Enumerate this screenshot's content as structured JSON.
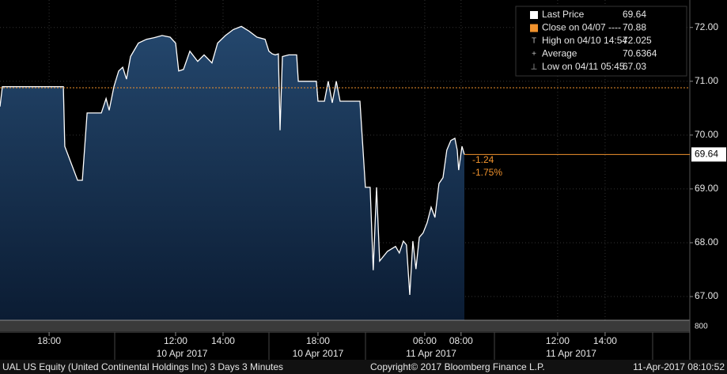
{
  "chart_data": {
    "type": "area",
    "x": [
      0,
      0.1,
      2.67,
      2.73,
      3.27,
      3.47,
      3.67,
      4.27,
      4.47,
      4.6,
      4.8,
      5,
      5.17,
      5.33,
      5.5,
      5.83,
      6.17,
      6.5,
      6.83,
      7.17,
      7.4,
      7.53,
      7.73,
      8,
      8.33,
      8.6,
      8.93,
      9.17,
      9.5,
      9.83,
      10.17,
      10.5,
      10.83,
      11.17,
      11.33,
      11.47,
      11.6,
      11.73,
      11.8,
      11.9,
      12.17,
      12.5,
      12.57,
      13,
      13.33,
      13.4,
      13.67,
      13.83,
      14,
      14.17,
      14.33,
      15.17,
      15.4,
      15.6,
      15.73,
      15.87,
      16,
      16.33,
      16.67,
      16.83,
      17,
      17.13,
      17.27,
      17.4,
      17.53,
      17.67,
      17.83,
      18,
      18.17,
      18.33,
      18.5,
      18.67,
      18.83,
      19,
      19.17,
      19.27,
      19.33,
      19.47,
      19.57
    ],
    "series": [
      {
        "name": "Last Price",
        "color": "#ffffff",
        "values": [
          70.53,
          70.9,
          70.9,
          69.79,
          69.16,
          69.16,
          70.41,
          70.41,
          70.68,
          70.46,
          70.9,
          71.19,
          71.26,
          71.04,
          71.46,
          71.71,
          71.78,
          71.81,
          71.85,
          71.82,
          71.71,
          71.19,
          71.22,
          71.56,
          71.37,
          71.49,
          71.34,
          71.71,
          71.85,
          71.96,
          72.02,
          71.93,
          71.82,
          71.78,
          71.56,
          71.51,
          71.49,
          71.51,
          70.09,
          71.46,
          71.49,
          71.49,
          71,
          71,
          71,
          70.63,
          70.63,
          71,
          70.6,
          71,
          70.63,
          70.63,
          69.03,
          69.03,
          67.49,
          69.03,
          67.66,
          67.84,
          67.93,
          67.81,
          68.03,
          67.96,
          67.03,
          68.03,
          67.51,
          68.1,
          68.18,
          68.37,
          68.66,
          68.47,
          69.1,
          69.21,
          69.72,
          69.9,
          69.94,
          69.72,
          69.35,
          69.79,
          69.64
        ]
      }
    ],
    "xlim": [
      0,
      29.07
    ],
    "xticks": [
      {
        "value": 2.07,
        "label": "18:00"
      },
      {
        "value": 7.4,
        "label": "12:00"
      },
      {
        "value": 9.4,
        "label": "14:00"
      },
      {
        "value": 13.4,
        "label": "18:00"
      },
      {
        "value": 17.9,
        "label": "06:00"
      },
      {
        "value": 19.43,
        "label": "08:00"
      },
      {
        "value": 23.5,
        "label": "12:00"
      },
      {
        "value": 25.5,
        "label": "14:00"
      }
    ],
    "date_labels": [
      {
        "value": 7.67,
        "label": "10 Apr 2017"
      },
      {
        "value": 13.4,
        "label": "10 Apr 2017"
      },
      {
        "value": 18.17,
        "label": "11 Apr 2017"
      },
      {
        "value": 24.07,
        "label": "11 Apr 2017"
      }
    ],
    "ylim": [
      66.56,
      72.51
    ],
    "yticks": [
      {
        "value": 67,
        "label": "67.00"
      },
      {
        "value": 68,
        "label": "68.00"
      },
      {
        "value": 69,
        "label": "69.00"
      },
      {
        "value": 70,
        "label": "70.00"
      },
      {
        "value": 71,
        "label": "71.00"
      },
      {
        "value": 72,
        "label": "72.00"
      }
    ],
    "grid": true,
    "legend": [
      {
        "label": "Last Price",
        "value": 69.64
      },
      {
        "label": "Close on 04/07 ----",
        "value": 70.88
      },
      {
        "label": "High on 04/10 14:54",
        "value": 72.025
      },
      {
        "label": "Average",
        "value": 70.6364
      },
      {
        "label": "Low on 04/11 05:45",
        "value": 67.03
      }
    ],
    "annotations": [
      "-1.24",
      "-1.75%"
    ],
    "volume_label": "800",
    "footer": [
      "UAL US Equity (United Continental Holdings Inc) 3 Days 3 Minutes",
      "Copyright© 2017 Bloomberg Finance L.P.",
      "11-Apr-2017 08:10:52"
    ]
  }
}
